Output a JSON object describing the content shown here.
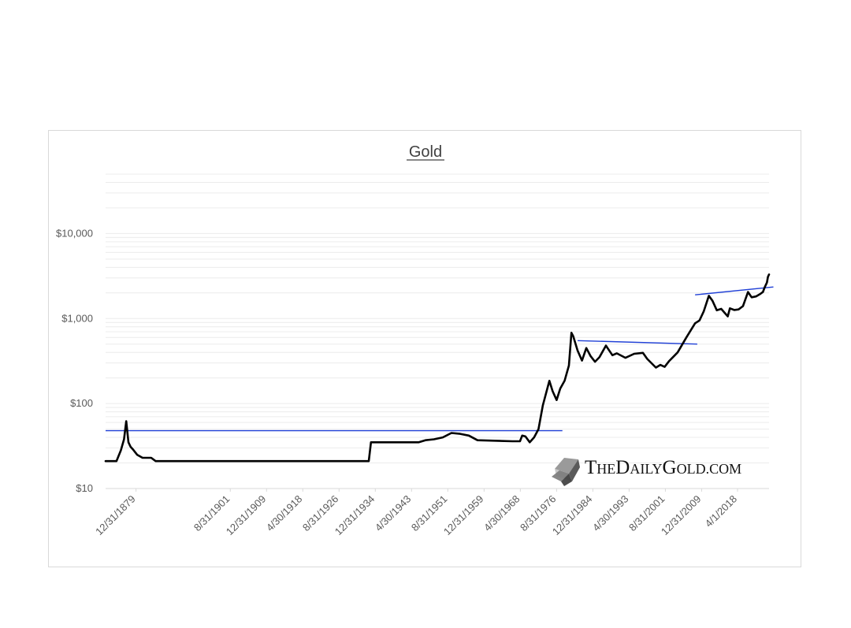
{
  "chart_data": {
    "type": "line",
    "title": "Gold",
    "y_scale": "log",
    "ylim": [
      10,
      50000
    ],
    "y_ticks": [
      {
        "value": 10,
        "label": "$10"
      },
      {
        "value": 100,
        "label": "$100"
      },
      {
        "value": 1000,
        "label": "$1,000"
      },
      {
        "value": 10000,
        "label": "$10,000"
      }
    ],
    "xlim": [
      "1873-01-01",
      "2025-06-30"
    ],
    "x_ticks": [
      {
        "date": "1879-12-31",
        "label": "12/31/1879"
      },
      {
        "date": "1901-08-31",
        "label": "8/31/1901"
      },
      {
        "date": "1909-12-31",
        "label": "12/31/1909"
      },
      {
        "date": "1918-04-30",
        "label": "4/30/1918"
      },
      {
        "date": "1926-08-31",
        "label": "8/31/1926"
      },
      {
        "date": "1934-12-31",
        "label": "12/31/1934"
      },
      {
        "date": "1943-04-30",
        "label": "4/30/1943"
      },
      {
        "date": "1951-08-31",
        "label": "8/31/1951"
      },
      {
        "date": "1959-12-31",
        "label": "12/31/1959"
      },
      {
        "date": "1968-04-30",
        "label": "4/30/1968"
      },
      {
        "date": "1976-08-31",
        "label": "8/31/1976"
      },
      {
        "date": "1984-12-31",
        "label": "12/31/1984"
      },
      {
        "date": "1993-04-30",
        "label": "4/30/1993"
      },
      {
        "date": "2001-08-31",
        "label": "8/31/2001"
      },
      {
        "date": "2009-12-31",
        "label": "12/31/2009"
      },
      {
        "date": "2018-04-01",
        "label": "4/1/2018"
      }
    ],
    "grid": true,
    "line_color": "#000000",
    "series": [
      {
        "points": [
          [
            "1873-01-01",
            21
          ],
          [
            "1875-06-30",
            21
          ],
          [
            "1876-06-30",
            28
          ],
          [
            "1877-03-31",
            38
          ],
          [
            "1877-09-30",
            62
          ],
          [
            "1878-03-31",
            35
          ],
          [
            "1878-09-30",
            31
          ],
          [
            "1879-03-31",
            29
          ],
          [
            "1880-03-31",
            25
          ],
          [
            "1881-06-30",
            23
          ],
          [
            "1883-06-30",
            23
          ],
          [
            "1884-06-30",
            21
          ],
          [
            "1933-06-30",
            21
          ],
          [
            "1933-12-31",
            35
          ],
          [
            "1944-12-31",
            35
          ],
          [
            "1946-06-30",
            37
          ],
          [
            "1948-06-30",
            38
          ],
          [
            "1950-06-30",
            40
          ],
          [
            "1952-06-30",
            45
          ],
          [
            "1954-06-30",
            44
          ],
          [
            "1956-06-30",
            42
          ],
          [
            "1958-06-30",
            37
          ],
          [
            "1966-06-30",
            36
          ],
          [
            "1968-03-31",
            36
          ],
          [
            "1968-09-30",
            42
          ],
          [
            "1969-06-30",
            41
          ],
          [
            "1970-06-30",
            35
          ],
          [
            "1971-06-30",
            40
          ],
          [
            "1972-06-30",
            50
          ],
          [
            "1973-06-30",
            95
          ],
          [
            "1974-12-31",
            185
          ],
          [
            "1975-09-30",
            140
          ],
          [
            "1976-08-31",
            110
          ],
          [
            "1977-06-30",
            150
          ],
          [
            "1978-06-30",
            185
          ],
          [
            "1979-06-30",
            280
          ],
          [
            "1980-01-31",
            680
          ],
          [
            "1980-06-30",
            620
          ],
          [
            "1981-06-30",
            420
          ],
          [
            "1982-06-30",
            320
          ],
          [
            "1983-06-30",
            450
          ],
          [
            "1984-06-30",
            360
          ],
          [
            "1985-06-30",
            310
          ],
          [
            "1986-06-30",
            350
          ],
          [
            "1987-12-31",
            480
          ],
          [
            "1988-06-30",
            440
          ],
          [
            "1989-06-30",
            370
          ],
          [
            "1990-06-30",
            390
          ],
          [
            "1992-06-30",
            345
          ],
          [
            "1994-06-30",
            385
          ],
          [
            "1996-06-30",
            395
          ],
          [
            "1997-06-30",
            335
          ],
          [
            "1999-06-30",
            265
          ],
          [
            "2000-06-30",
            285
          ],
          [
            "2001-06-30",
            270
          ],
          [
            "2002-06-30",
            315
          ],
          [
            "2003-06-30",
            355
          ],
          [
            "2004-06-30",
            400
          ],
          [
            "2006-06-30",
            600
          ],
          [
            "2008-06-30",
            880
          ],
          [
            "2009-06-30",
            950
          ],
          [
            "2010-06-30",
            1220
          ],
          [
            "2011-08-31",
            1850
          ],
          [
            "2012-06-30",
            1620
          ],
          [
            "2013-06-30",
            1250
          ],
          [
            "2014-06-30",
            1300
          ],
          [
            "2015-12-31",
            1060
          ],
          [
            "2016-06-30",
            1320
          ],
          [
            "2017-06-30",
            1260
          ],
          [
            "2018-06-30",
            1280
          ],
          [
            "2019-06-30",
            1400
          ],
          [
            "2020-08-31",
            2050
          ],
          [
            "2021-06-30",
            1780
          ],
          [
            "2022-06-30",
            1820
          ],
          [
            "2023-06-30",
            1950
          ],
          [
            "2024-01-31",
            2050
          ],
          [
            "2024-06-30",
            2330
          ],
          [
            "2024-12-31",
            2650
          ],
          [
            "2025-03-31",
            3100
          ],
          [
            "2025-06-30",
            3300
          ]
        ]
      }
    ],
    "trendlines": [
      {
        "color": "#1f3fd6",
        "points": [
          [
            "1873-01-01",
            48
          ],
          [
            "1977-12-31",
            48
          ]
        ]
      },
      {
        "color": "#1f3fd6",
        "points": [
          [
            "1981-06-30",
            550
          ],
          [
            "2008-12-31",
            500
          ]
        ]
      },
      {
        "color": "#1f3fd6",
        "points": [
          [
            "2008-06-30",
            1900
          ],
          [
            "2026-06-30",
            2350
          ]
        ]
      }
    ]
  },
  "watermark": {
    "text_large_1": "T",
    "text_small_1": "HE",
    "text_large_2": "D",
    "text_small_2": "AILY",
    "text_large_3": "G",
    "text_small_3": "OLD",
    "text_small_4": ".COM",
    "logo_icon": "gold-bar-icon"
  }
}
